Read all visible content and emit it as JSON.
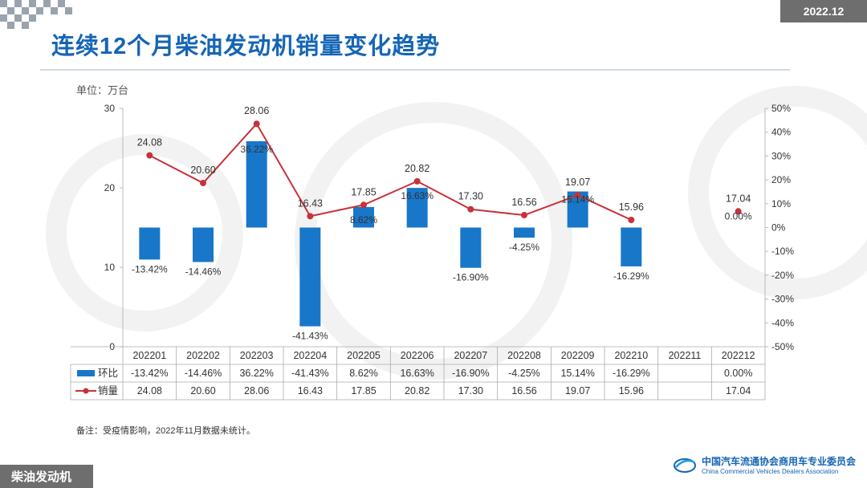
{
  "header": {
    "date_badge": "2022.12",
    "title": "连续12个月柴油发动机销量变化趋势",
    "unit": "单位：万台"
  },
  "footer": {
    "note": "备注：受疫情影响，2022年11月数据未统计。",
    "section_tag": "柴油发动机",
    "org_name_cn": "中国汽车流通协会商用车专业委员会",
    "org_name_en": "China Commercial Vehicles Dealers Association"
  },
  "colors": {
    "bar": "#1877c9",
    "line": "#c8323a",
    "title": "#1565b5"
  },
  "chart_data": {
    "type": "bar",
    "title": "连续12个月柴油发动机销量变化趋势",
    "categories": [
      "202201",
      "202202",
      "202203",
      "202204",
      "202205",
      "202206",
      "202207",
      "202208",
      "202209",
      "202210",
      "202211",
      "202212"
    ],
    "series": [
      {
        "name": "环比",
        "kind": "bar",
        "axis": "right",
        "values": [
          -13.42,
          -14.46,
          36.22,
          -41.43,
          8.62,
          16.63,
          -16.9,
          -4.25,
          15.14,
          -16.29,
          null,
          0
        ],
        "labels": [
          "-13.42%",
          "-14.46%",
          "36.22%",
          "-41.43%",
          "8.62%",
          "16.63%",
          "-16.90%",
          "-4.25%",
          "15.14%",
          "-16.29%",
          "",
          "0.00%"
        ]
      },
      {
        "name": "销量",
        "kind": "line",
        "axis": "left",
        "values": [
          24.08,
          20.6,
          28.06,
          16.43,
          17.85,
          20.82,
          17.3,
          16.56,
          19.07,
          15.96,
          null,
          17.04
        ],
        "labels": [
          "24.08",
          "20.60",
          "28.06",
          "16.43",
          "17.85",
          "20.82",
          "17.30",
          "16.56",
          "19.07",
          "15.96",
          "",
          "17.04"
        ]
      }
    ],
    "ylim_left": [
      0,
      30
    ],
    "yticks_left": [
      "0",
      "10",
      "20",
      "30"
    ],
    "ylim_right": [
      -50,
      50
    ],
    "yticks_right": [
      "-50%",
      "-40%",
      "-30%",
      "-20%",
      "-10%",
      "0%",
      "10%",
      "20%",
      "30%",
      "40%",
      "50%"
    ],
    "ylabel": "单位：万台",
    "legend": "data-table"
  }
}
